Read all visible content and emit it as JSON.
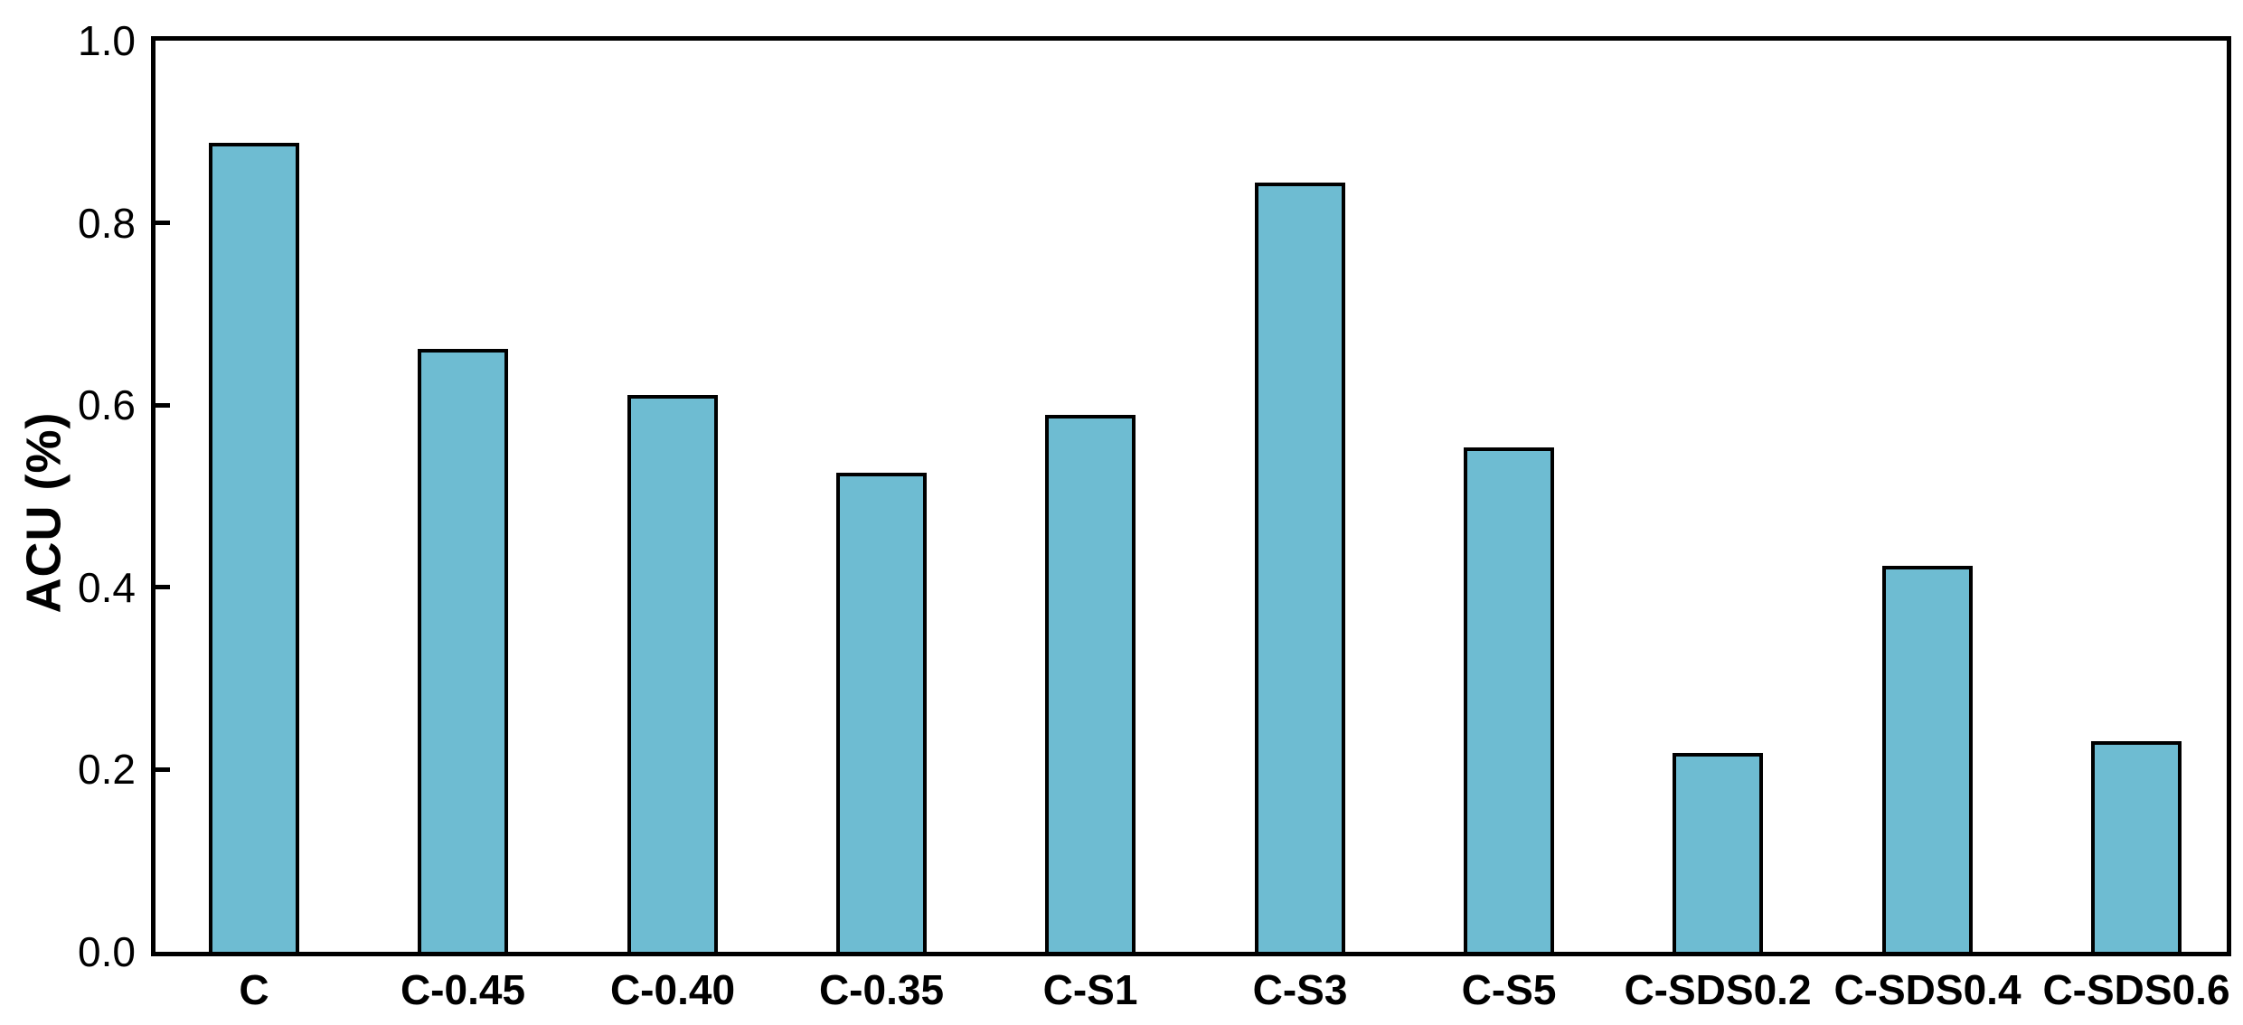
{
  "chart_data": {
    "type": "bar",
    "title": "",
    "xlabel": "",
    "ylabel": "ACU (%)",
    "categories": [
      "C",
      "C-0.45",
      "C-0.40",
      "C-0.35",
      "C-S1",
      "C-S3",
      "C-S5",
      "C-SDS0.2",
      "C-SDS0.4",
      "C-SDS0.6"
    ],
    "values": [
      0.888,
      0.662,
      0.611,
      0.526,
      0.589,
      0.844,
      0.554,
      0.218,
      0.424,
      0.231
    ],
    "ylim": [
      0.0,
      1.0
    ],
    "yticks": [
      0.0,
      0.2,
      0.4,
      0.6,
      0.8,
      1.0
    ],
    "ytick_labels": [
      "0.0",
      "0.2",
      "0.4",
      "0.6",
      "0.8",
      "1.0"
    ],
    "grid": false,
    "legend": "none",
    "bar_fill_color": "#6EBCD2",
    "bar_border_color": "#000000",
    "axis_color": "#000000",
    "text_color": "#000000",
    "background_color": "#FFFFFF"
  }
}
